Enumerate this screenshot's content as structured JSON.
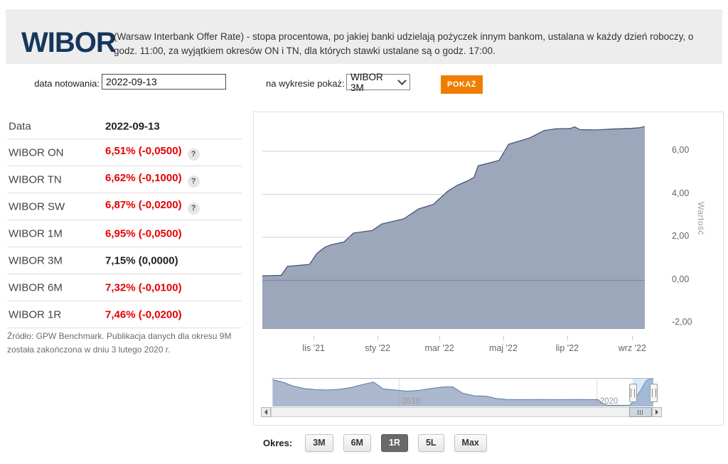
{
  "header": {
    "logo": "WIBOR",
    "description": "(Warsaw Interbank Offer Rate) - stopa procentowa, po jakiej banki udzielają pożyczek innym bankom, ustalana w każdy dzień roboczy, o godz. 11:00, za wyjątkiem okresów ON i TN, dla których stawki ustalane są o godz. 17:00.",
    "logo_color": "#16365c",
    "bg": "#ededed"
  },
  "controls": {
    "date_label": "data notowania:",
    "date_value": "2022-09-13",
    "series_label": "na wykresie pokaż:",
    "series_value": "WIBOR 3M",
    "show_button": "POKAŻ",
    "show_button_color": "#ef7d00"
  },
  "table": {
    "header": {
      "col1": "Data",
      "col2": "2022-09-13"
    },
    "rows": [
      {
        "label": "WIBOR ON",
        "value": "6,51% (-0,0500)",
        "direction": "down",
        "help": true
      },
      {
        "label": "WIBOR TN",
        "value": "6,62% (-0,1000)",
        "direction": "down",
        "help": true
      },
      {
        "label": "WIBOR SW",
        "value": "6,87% (-0,0200)",
        "direction": "down",
        "help": true
      },
      {
        "label": "WIBOR 1M",
        "value": "6,95% (-0,0500)",
        "direction": "down",
        "help": false
      },
      {
        "label": "WIBOR 3M",
        "value": "7,15% (0,0000)",
        "direction": "flat",
        "help": false
      },
      {
        "label": "WIBOR 6M",
        "value": "7,32% (-0,0100)",
        "direction": "down",
        "help": false
      },
      {
        "label": "WIBOR 1R",
        "value": "7,46% (-0,0200)",
        "direction": "down",
        "help": false
      }
    ],
    "down_color": "#e60000",
    "help_glyph": "?",
    "footnote": "Źródło: GPW Benchmark. Publikacja danych dla okresu 9M została zakończona w dniu 3 lutego 2020 r."
  },
  "chart_data": {
    "type": "area",
    "series_name": "WIBOR 3M",
    "ylabel": "Wartość",
    "ylim": [
      -2.26,
      7.45
    ],
    "grid": true,
    "x_start_date": "2021-09-13",
    "x_end_date": "2022-09-13",
    "yticks": [
      {
        "v": 6,
        "label": "6,00"
      },
      {
        "v": 4,
        "label": "4,00"
      },
      {
        "v": 2,
        "label": "2,00"
      },
      {
        "v": 0,
        "label": "0,00"
      },
      {
        "v": -2,
        "label": "-2,00"
      }
    ],
    "xticks": [
      {
        "day": 49,
        "label": "lis '21"
      },
      {
        "day": 110,
        "label": "sty '22"
      },
      {
        "day": 169,
        "label": "mar '22"
      },
      {
        "day": 230,
        "label": "maj '22"
      },
      {
        "day": 291,
        "label": "lip '22"
      },
      {
        "day": 353,
        "label": "wrz '22"
      }
    ],
    "points_day_value": [
      [
        0,
        0.21
      ],
      [
        18,
        0.23
      ],
      [
        24,
        0.65
      ],
      [
        45,
        0.74
      ],
      [
        52,
        1.25
      ],
      [
        60,
        1.55
      ],
      [
        66,
        1.66
      ],
      [
        78,
        1.79
      ],
      [
        87,
        2.2
      ],
      [
        105,
        2.32
      ],
      [
        114,
        2.62
      ],
      [
        135,
        2.86
      ],
      [
        149,
        3.32
      ],
      [
        163,
        3.53
      ],
      [
        177,
        4.15
      ],
      [
        186,
        4.42
      ],
      [
        196,
        4.63
      ],
      [
        202,
        4.79
      ],
      [
        206,
        5.33
      ],
      [
        226,
        5.58
      ],
      [
        235,
        6.33
      ],
      [
        255,
        6.62
      ],
      [
        269,
        6.97
      ],
      [
        280,
        7.05
      ],
      [
        294,
        7.06
      ],
      [
        298,
        7.14
      ],
      [
        303,
        7.01
      ],
      [
        318,
        7.0
      ],
      [
        335,
        7.04
      ],
      [
        352,
        7.07
      ],
      [
        360,
        7.1
      ],
      [
        365,
        7.15
      ]
    ],
    "line_color": "#3f4d6e",
    "fill_color": "#8391ab",
    "fill_opacity": 0.8,
    "navigator": {
      "domain_years": [
        2003.55,
        2022.85
      ],
      "year_labels": [
        {
          "year": 2010,
          "label": "2010"
        },
        {
          "year": 2020,
          "label": "2020"
        }
      ],
      "selection_years": [
        2021.8,
        2022.85
      ],
      "line_color": "#5b79a6",
      "fill_color": "#8fa0bc",
      "points_year_value": [
        [
          2003.6,
          6.9
        ],
        [
          2004.1,
          6.3
        ],
        [
          2004.6,
          5.3
        ],
        [
          2005.2,
          4.6
        ],
        [
          2005.8,
          4.3
        ],
        [
          2006.4,
          4.2
        ],
        [
          2007.0,
          4.4
        ],
        [
          2007.6,
          4.9
        ],
        [
          2008.2,
          5.7
        ],
        [
          2008.7,
          6.3
        ],
        [
          2009.2,
          4.5
        ],
        [
          2009.8,
          4.2
        ],
        [
          2010.4,
          3.9
        ],
        [
          2011.0,
          4.1
        ],
        [
          2011.6,
          4.6
        ],
        [
          2012.2,
          5.0
        ],
        [
          2012.7,
          5.05
        ],
        [
          2013.2,
          3.4
        ],
        [
          2013.8,
          2.7
        ],
        [
          2014.4,
          2.6
        ],
        [
          2014.9,
          2.0
        ],
        [
          2015.4,
          1.75
        ],
        [
          2016.0,
          1.7
        ],
        [
          2017.0,
          1.73
        ],
        [
          2018.0,
          1.7
        ],
        [
          2019.0,
          1.72
        ],
        [
          2020.05,
          1.7
        ],
        [
          2020.3,
          0.68
        ],
        [
          2020.55,
          0.23
        ],
        [
          2021.0,
          0.21
        ],
        [
          2021.65,
          0.24
        ],
        [
          2021.85,
          1.2
        ],
        [
          2022.05,
          2.9
        ],
        [
          2022.25,
          4.5
        ],
        [
          2022.45,
          6.4
        ],
        [
          2022.6,
          7.0
        ],
        [
          2022.85,
          7.15
        ]
      ]
    }
  },
  "okres": {
    "label": "Okres:",
    "buttons": [
      {
        "label": "3M",
        "active": false
      },
      {
        "label": "6M",
        "active": false
      },
      {
        "label": "1R",
        "active": true
      },
      {
        "label": "5L",
        "active": false
      },
      {
        "label": "Max",
        "active": false
      }
    ]
  }
}
